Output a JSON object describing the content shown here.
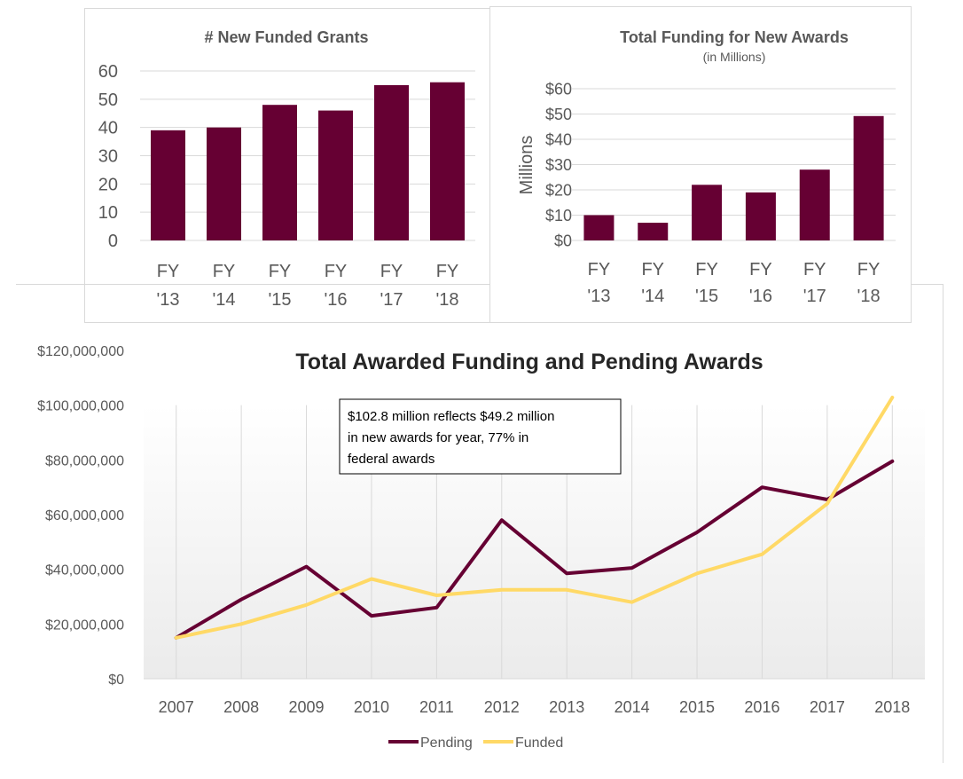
{
  "colors": {
    "maroon": "#660033",
    "gold": "#ffd966",
    "grid": "#d9d9d9",
    "text": "#595959",
    "title": "#404040"
  },
  "chart_data": [
    {
      "type": "bar",
      "title": "# New Funded Grants",
      "categories": [
        [
          "FY",
          "'13"
        ],
        [
          "FY",
          "'14"
        ],
        [
          "FY",
          "'15"
        ],
        [
          "FY",
          "'16"
        ],
        [
          "FY",
          "'17"
        ],
        [
          "FY",
          "'18"
        ]
      ],
      "values": [
        39,
        40,
        48,
        46,
        55,
        56
      ],
      "yticks": [
        "0",
        "10",
        "20",
        "30",
        "40",
        "50",
        "60"
      ],
      "ylim": [
        0,
        60
      ],
      "grid": true
    },
    {
      "type": "bar",
      "title": "Total Funding for New Awards",
      "subtitle": "(in Millions)",
      "ylabel": "Millions",
      "categories": [
        [
          "FY",
          "'13"
        ],
        [
          "FY",
          "'14"
        ],
        [
          "FY",
          "'15"
        ],
        [
          "FY",
          "'16"
        ],
        [
          "FY",
          "'17"
        ],
        [
          "FY",
          "'18"
        ]
      ],
      "values": [
        10,
        7,
        22,
        19,
        28,
        49.2
      ],
      "yticks": [
        "$0",
        "$10",
        "$20",
        "$30",
        "$40",
        "$50",
        "$60"
      ],
      "ylim": [
        0,
        60
      ],
      "grid": true
    },
    {
      "type": "line",
      "title": "Total Awarded Funding and Pending Awards",
      "categories": [
        "2007",
        "2008",
        "2009",
        "2010",
        "2011",
        "2012",
        "2013",
        "2014",
        "2015",
        "2016",
        "2017",
        "2018"
      ],
      "series": [
        {
          "name": "Pending",
          "color": "#660033",
          "values": [
            15000000,
            29000000,
            41000000,
            23000000,
            26000000,
            58000000,
            38500000,
            40500000,
            53500000,
            70000000,
            65500000,
            79500000
          ]
        },
        {
          "name": "Funded",
          "color": "#ffd966",
          "values": [
            15000000,
            20000000,
            27000000,
            36500000,
            30500000,
            32500000,
            32500000,
            28000000,
            38500000,
            45500000,
            64000000,
            102800000
          ]
        }
      ],
      "yticks": [
        "$0",
        "$20,000,000",
        "$40,000,000",
        "$60,000,000",
        "$80,000,000",
        "$100,000,000",
        "$120,000,000"
      ],
      "ylim": [
        0,
        120000000
      ],
      "annotation": [
        "$102.8 million reflects $49.2 million",
        "in new awards for year, 77% in",
        "federal awards"
      ],
      "legend": "bottom",
      "grid": true
    }
  ]
}
